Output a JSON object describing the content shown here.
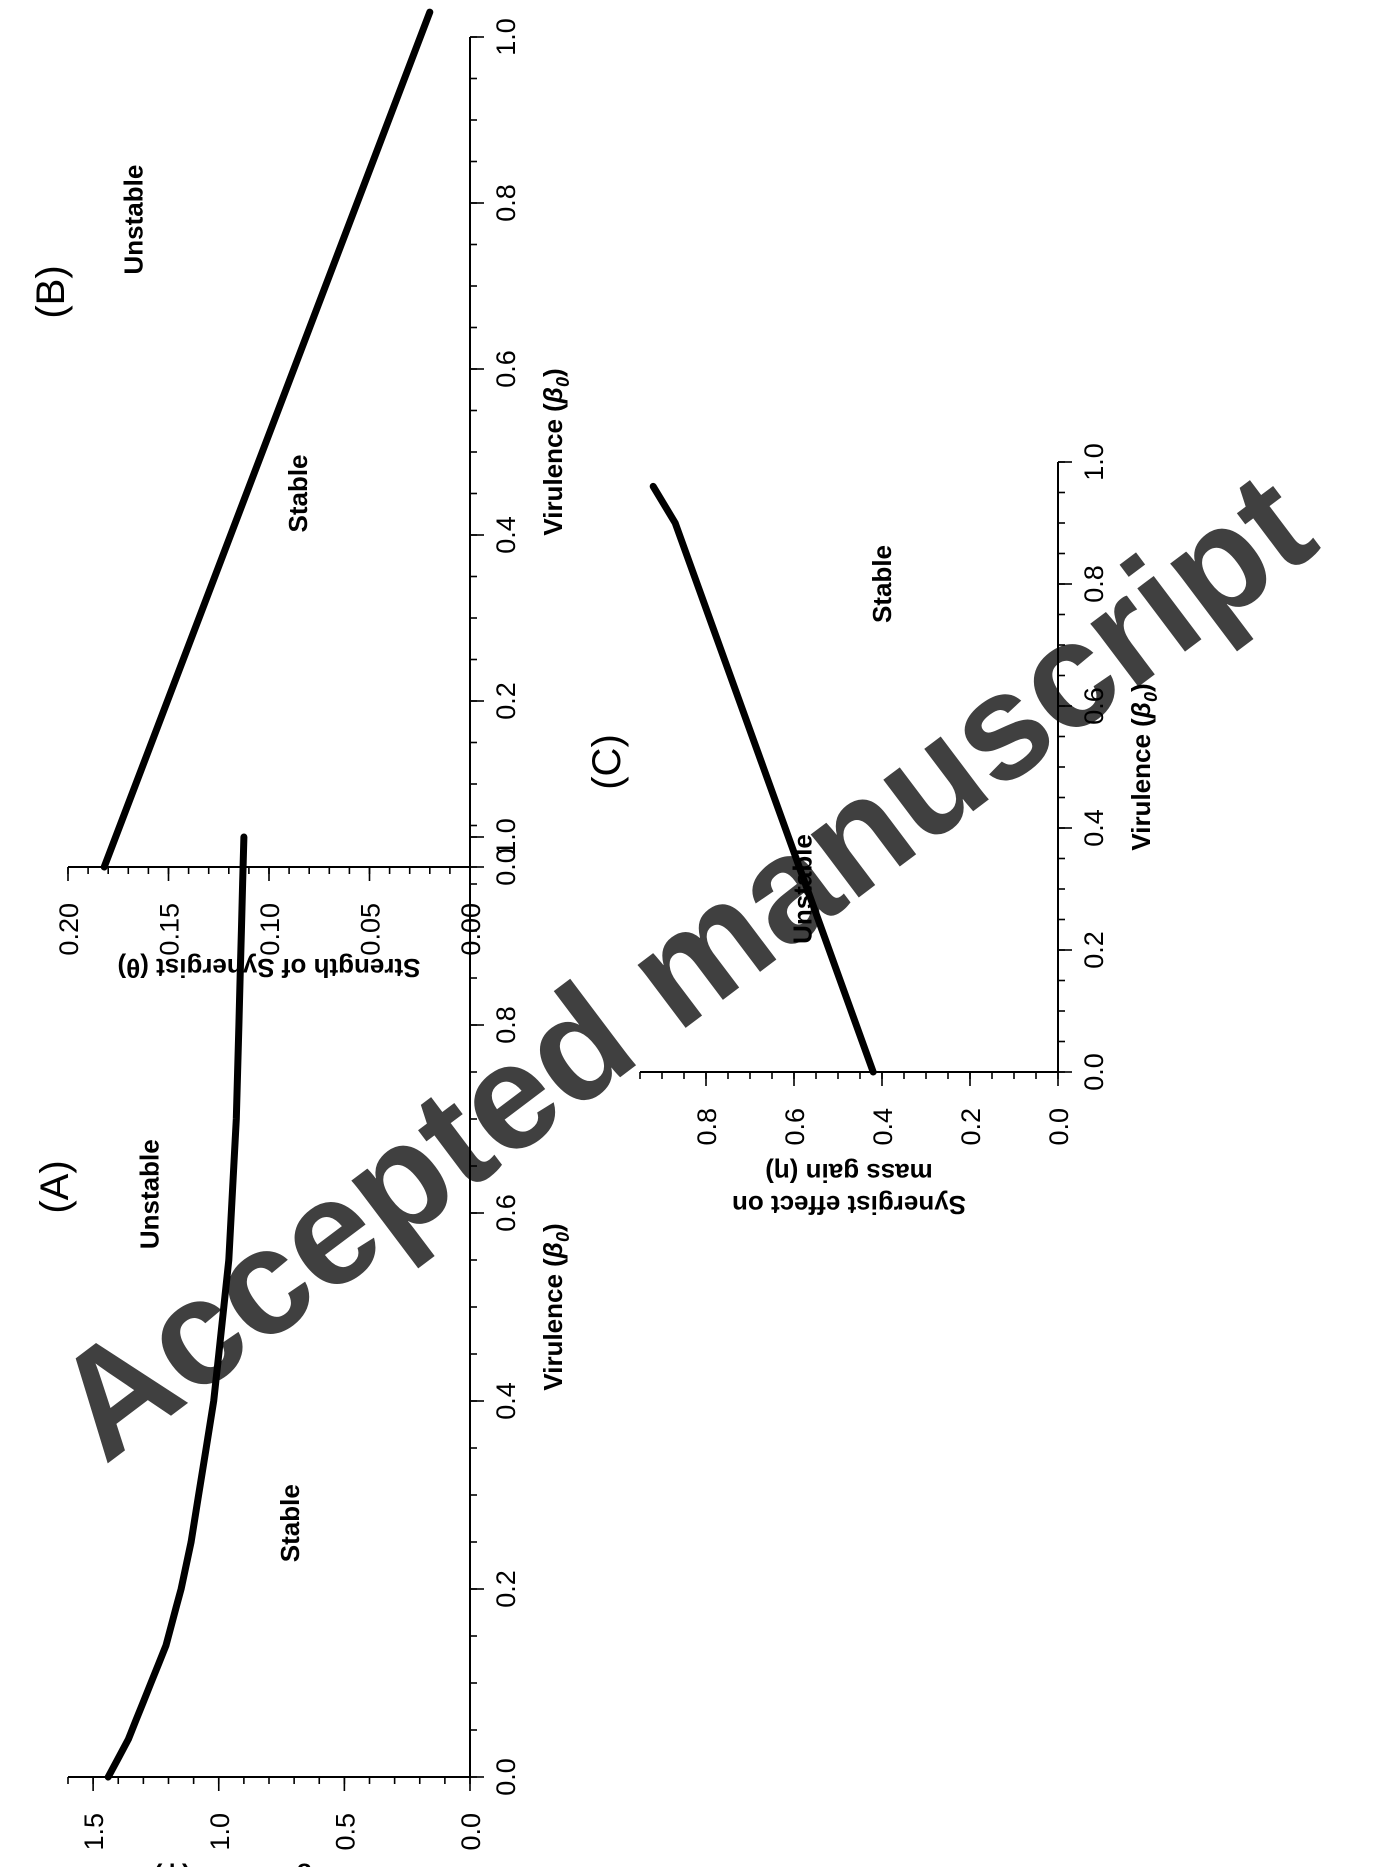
{
  "watermark": "Accepted manuscript",
  "chart_data": [
    {
      "id": "A",
      "type": "line",
      "panel_label": "(A)",
      "xlabel_prefix": "Virulence (",
      "xlabel_symbol": "β",
      "xlabel_subscript": "0",
      "xlabel_suffix": ")",
      "ylabel_lines": [
        "Effects of Host Mass on",
        "Pathogen Yield (ψ)"
      ],
      "xlim": [
        0,
        1
      ],
      "ylim": [
        0,
        1.6
      ],
      "x_ticks": [
        0,
        0.2,
        0.4,
        0.6,
        0.8,
        1.0
      ],
      "x_tick_labels": [
        "0.0",
        "0.2",
        "0.4",
        "0.6",
        "0.8",
        "1.0"
      ],
      "y_ticks": [
        0,
        0.5,
        1.0,
        1.5
      ],
      "y_tick_labels": [
        "0.0",
        "0.5",
        "1.0",
        "1.5"
      ],
      "x_minor_step": 0.05,
      "y_minor_step": 0.1,
      "grid": false,
      "regions": [
        {
          "label": "Unstable",
          "x": 0.62,
          "y": 1.24
        },
        {
          "label": "Stable",
          "x": 0.27,
          "y": 0.68
        }
      ],
      "series": [
        {
          "x": [
            0,
            0.02,
            0.04,
            0.06,
            0.08,
            0.1,
            0.12,
            0.14,
            0.16,
            0.18,
            0.2,
            0.25,
            0.3,
            0.35,
            0.4,
            0.45,
            0.5,
            0.55,
            0.6,
            0.65,
            0.7,
            0.75,
            0.8,
            0.85,
            0.9,
            0.95,
            1.0
          ],
          "y": [
            1.44,
            1.4,
            1.36,
            1.33,
            1.3,
            1.27,
            1.24,
            1.21,
            1.19,
            1.17,
            1.15,
            1.11,
            1.08,
            1.05,
            1.02,
            1.0,
            0.98,
            0.96,
            0.95,
            0.94,
            0.93,
            0.925,
            0.92,
            0.915,
            0.91,
            0.905,
            0.9
          ]
        }
      ]
    },
    {
      "id": "B",
      "type": "line",
      "panel_label": "(B)",
      "xlabel_prefix": "Virulence (",
      "xlabel_symbol": "β",
      "xlabel_subscript": "0",
      "xlabel_suffix": ")",
      "ylabel_lines": [
        "Strength of Synergist (θ)"
      ],
      "xlim": [
        0,
        1
      ],
      "ylim": [
        0,
        0.2
      ],
      "x_ticks": [
        0,
        0.2,
        0.4,
        0.6,
        0.8,
        1.0
      ],
      "x_tick_labels": [
        "0.0",
        "0.2",
        "0.4",
        "0.6",
        "0.8",
        "1.0"
      ],
      "y_ticks": [
        0,
        0.05,
        0.1,
        0.15,
        0.2
      ],
      "y_tick_labels": [
        "0.00",
        "0.05",
        "0.10",
        "0.15",
        "0.20"
      ],
      "x_minor_step": 0.05,
      "y_minor_step": 0.01,
      "grid": false,
      "regions": [
        {
          "label": "Unstable",
          "x": 0.78,
          "y": 0.163
        },
        {
          "label": "Stable",
          "x": 0.45,
          "y": 0.081
        }
      ],
      "series": [
        {
          "x": [
            0,
            1.03
          ],
          "y": [
            0.182,
            0.02
          ]
        }
      ]
    },
    {
      "id": "C",
      "type": "line",
      "panel_label": "(C)",
      "xlabel_prefix": "Virulence (",
      "xlabel_symbol": "β",
      "xlabel_subscript": "0",
      "xlabel_suffix": ")",
      "ylabel_lines": [
        "Synergist effect on",
        "mass gain (η)"
      ],
      "xlim": [
        0,
        1
      ],
      "ylim": [
        0,
        0.95
      ],
      "x_ticks": [
        0,
        0.2,
        0.4,
        0.6,
        0.8,
        1.0
      ],
      "x_tick_labels": [
        "0.0",
        "0.2",
        "0.4",
        "0.6",
        "0.8",
        "1.0"
      ],
      "y_ticks": [
        0,
        0.2,
        0.4,
        0.6,
        0.8
      ],
      "y_tick_labels": [
        "0.0",
        "0.2",
        "0.4",
        "0.6",
        "0.8"
      ],
      "x_minor_step": 0.05,
      "y_minor_step": 0.05,
      "grid": false,
      "regions": [
        {
          "label": "Unstable",
          "x": 0.3,
          "y": 0.56
        },
        {
          "label": "Stable",
          "x": 0.8,
          "y": 0.38
        }
      ],
      "series": [
        {
          "x": [
            0,
            0.1,
            0.2,
            0.3,
            0.4,
            0.5,
            0.6,
            0.7,
            0.8,
            0.9,
            0.96
          ],
          "y": [
            0.42,
            0.47,
            0.52,
            0.57,
            0.62,
            0.67,
            0.72,
            0.77,
            0.82,
            0.87,
            0.92
          ]
        }
      ]
    }
  ]
}
